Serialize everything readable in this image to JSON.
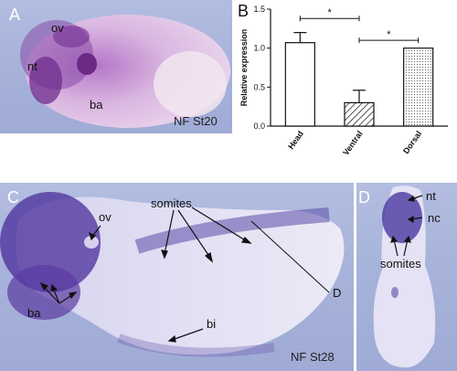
{
  "panels": {
    "a": {
      "letter": "A",
      "stage": "NF St20",
      "labels": {
        "ov": "ov",
        "nt": "nt",
        "ba": "ba"
      }
    },
    "b": {
      "letter": "B",
      "significance": [
        "*",
        "*"
      ]
    },
    "c": {
      "letter": "C",
      "stage": "NF St28",
      "labels": {
        "ov": "ov",
        "somites": "somites",
        "ba": "ba",
        "bi": "bi",
        "section": "D"
      }
    },
    "d": {
      "letter": "D",
      "labels": {
        "nt": "nt",
        "nc": "nc",
        "somites": "somites"
      }
    }
  },
  "chart_data": {
    "type": "bar",
    "categories": [
      "Head",
      "Ventral",
      "Dorsal"
    ],
    "values": [
      1.07,
      0.3,
      1.0
    ],
    "errors": [
      0.13,
      0.16,
      0.0
    ],
    "ylabel": "Relative expression",
    "ylim": [
      0,
      1.5
    ],
    "yticks": [
      "0.0",
      "0.5",
      "1.0",
      "1.5"
    ],
    "ytick_values": [
      0,
      0.5,
      1.0,
      1.5
    ],
    "bar_fills": [
      "open",
      "hatched",
      "dotted"
    ]
  }
}
